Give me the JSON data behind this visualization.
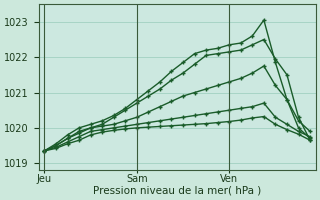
{
  "background_color": "#cce8dc",
  "plot_bg_color": "#cce8e0",
  "grid_color": "#99ccbb",
  "line_color": "#1a5c2a",
  "xlabel": "Pression niveau de la mer( hPa )",
  "ylim": [
    1018.8,
    1023.5
  ],
  "yticks": [
    1019,
    1020,
    1021,
    1022,
    1023
  ],
  "day_labels": [
    "Jeu",
    "Sam",
    "Ven"
  ],
  "day_positions": [
    0,
    8,
    16
  ],
  "n_points": 24,
  "series": [
    [
      1019.35,
      1019.5,
      1019.7,
      1019.9,
      1020.0,
      1020.1,
      1020.3,
      1020.5,
      1020.7,
      1020.9,
      1021.1,
      1021.35,
      1021.55,
      1021.8,
      1022.05,
      1022.1,
      1022.15,
      1022.2,
      1022.35,
      1022.5,
      1021.95,
      1021.5,
      1020.3,
      1019.65
    ],
    [
      1019.35,
      1019.55,
      1019.8,
      1020.0,
      1020.1,
      1020.2,
      1020.35,
      1020.55,
      1020.8,
      1021.05,
      1021.3,
      1021.6,
      1021.85,
      1022.1,
      1022.2,
      1022.25,
      1022.35,
      1022.4,
      1022.6,
      1023.05,
      1021.85,
      1020.8,
      1020.0,
      1019.7
    ],
    [
      1019.35,
      1019.5,
      1019.7,
      1019.85,
      1020.0,
      1020.05,
      1020.1,
      1020.2,
      1020.3,
      1020.45,
      1020.6,
      1020.75,
      1020.9,
      1021.0,
      1021.1,
      1021.2,
      1021.3,
      1021.4,
      1021.55,
      1021.75,
      1021.2,
      1020.8,
      1020.2,
      1019.9
    ],
    [
      1019.35,
      1019.45,
      1019.6,
      1019.75,
      1019.9,
      1019.95,
      1020.0,
      1020.05,
      1020.1,
      1020.15,
      1020.2,
      1020.25,
      1020.3,
      1020.35,
      1020.4,
      1020.45,
      1020.5,
      1020.55,
      1020.6,
      1020.7,
      1020.3,
      1020.1,
      1019.9,
      1019.75
    ],
    [
      1019.35,
      1019.42,
      1019.55,
      1019.65,
      1019.8,
      1019.88,
      1019.93,
      1019.97,
      1020.0,
      1020.02,
      1020.04,
      1020.06,
      1020.08,
      1020.1,
      1020.12,
      1020.15,
      1020.18,
      1020.22,
      1020.28,
      1020.32,
      1020.1,
      1019.95,
      1019.82,
      1019.65
    ]
  ]
}
